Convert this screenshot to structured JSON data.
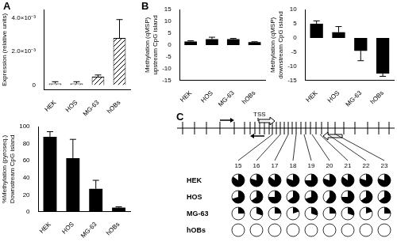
{
  "panel_labels": [
    "A",
    "B",
    "C"
  ],
  "chart_data": [
    {
      "type": "bar",
      "y_label": [
        "Expression (relative units)"
      ],
      "categories": [
        "HEK",
        "HOS",
        "MG-63",
        "hOBs"
      ],
      "values": [
        0.0001,
        0.0001,
        0.0005,
        0.0028
      ],
      "errors": [
        0.0001,
        0.0001,
        0.0001,
        0.0011
      ],
      "color": "#000000",
      "ylim": [
        -0.0003,
        0.0045
      ],
      "yticks": [
        0,
        {
          "value": 0.002,
          "label": "2.0×10⁻³"
        },
        {
          "value": 0.004,
          "label": "4.0×10⁻³"
        }
      ],
      "grid": false
    },
    {
      "type": "bar",
      "y_label": [
        "%Methylation (pyroseq.)",
        "Downstream CpG island"
      ],
      "categories": [
        "HEK",
        "HOS",
        "MG-63",
        "hOBs"
      ],
      "values": [
        88,
        63,
        27,
        5
      ],
      "errors": [
        6,
        22,
        10,
        1
      ],
      "color": "#000000",
      "ylim": [
        0,
        100
      ],
      "yticks": [
        0,
        20,
        40,
        60,
        80,
        100
      ],
      "grid": false
    },
    {
      "type": "bar",
      "y_label": [
        "Methylation (qMSP)",
        "upstream CpG island"
      ],
      "categories": [
        "HEK",
        "HOS",
        "MG-63",
        "hOBs"
      ],
      "values": [
        1.5,
        2.5,
        2.5,
        1.2
      ],
      "errors": [
        0.3,
        0.8,
        0.3,
        0.2
      ],
      "color": "#000000",
      "ylim": [
        -15,
        15
      ],
      "yticks": [
        -15,
        -10,
        -5,
        0,
        5,
        10,
        15
      ],
      "grid": false
    },
    {
      "type": "bar",
      "y_label": [
        "Methylation (qMSP)",
        "downstream CpG island"
      ],
      "categories": [
        "HEK",
        "HOS",
        "MG-63",
        "hOBs"
      ],
      "values": [
        5,
        2,
        -4.5,
        -12.5
      ],
      "errors": [
        1,
        2,
        3.5,
        1
      ],
      "color": "#000000",
      "ylim": [
        -15,
        10
      ],
      "yticks": [
        -15,
        -10,
        -5,
        0,
        5,
        10
      ],
      "grid": false
    }
  ],
  "diagram": {
    "tss": "TSS",
    "columns": [
      15,
      16,
      17,
      18,
      19,
      20,
      21,
      22,
      23
    ],
    "rows": [
      {
        "name": "HEK",
        "values": [
          85,
          80,
          85,
          80,
          75,
          80,
          85,
          80,
          80
        ]
      },
      {
        "name": "HOS",
        "values": [
          70,
          65,
          75,
          65,
          70,
          60,
          75,
          65,
          65
        ]
      },
      {
        "name": "MG-63",
        "values": [
          25,
          30,
          25,
          20,
          30,
          25,
          30,
          20,
          25
        ]
      },
      {
        "name": "hOBs",
        "values": [
          0,
          0,
          0,
          0,
          0,
          0,
          0,
          0,
          0
        ]
      }
    ]
  }
}
